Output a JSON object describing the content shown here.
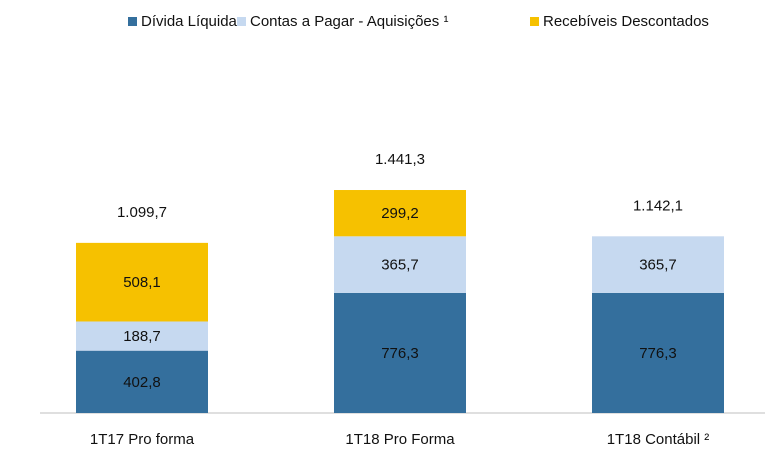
{
  "chart_data": {
    "type": "stacked_bar",
    "categories": [
      "1T17 Pro forma",
      "1T18 Pro Forma",
      "1T18 Contábil ²"
    ],
    "series": [
      {
        "name": "Dívida Líquida",
        "color": "#346f9d",
        "values": [
          402.8,
          776.3,
          776.3
        ],
        "value_labels": [
          "402,8",
          "776,3",
          "776,3"
        ]
      },
      {
        "name": "Contas a Pagar - Aquisições ¹",
        "color": "#c6d9f0",
        "values": [
          188.7,
          365.7,
          365.7
        ],
        "value_labels": [
          "188,7",
          "365,7",
          "365,7"
        ]
      },
      {
        "name": "Recebíveis Descontados",
        "color": "#f6c100",
        "values": [
          508.1,
          299.2,
          null
        ],
        "value_labels": [
          "508,1",
          "299,2",
          null
        ]
      }
    ],
    "totals": [
      1099.7,
      1441.3,
      1142.1
    ],
    "total_labels": [
      "1.099,7",
      "1.441,3",
      "1.142,1"
    ],
    "legend": "top"
  }
}
